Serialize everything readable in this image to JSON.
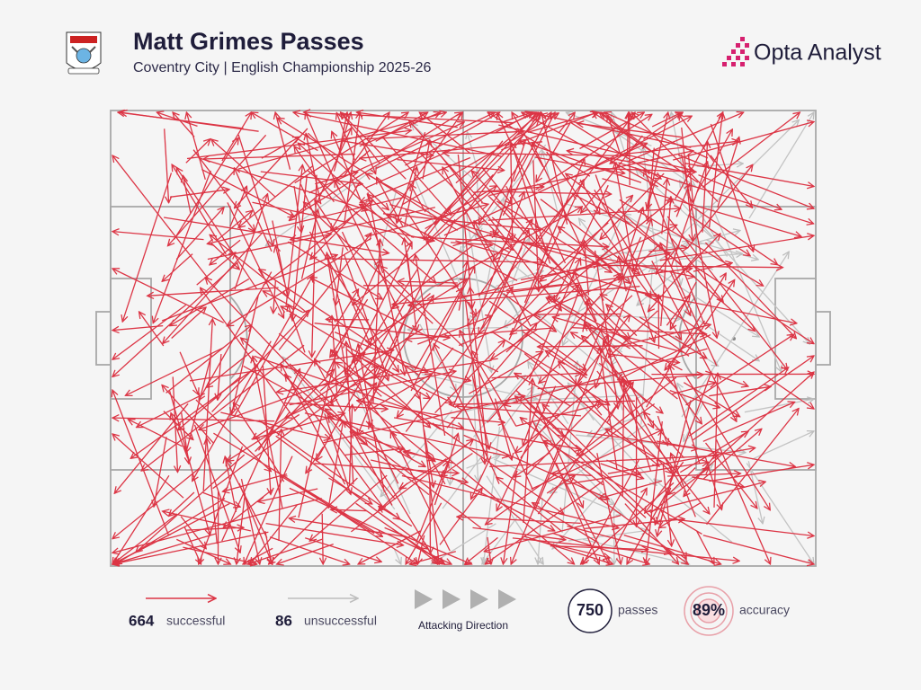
{
  "header": {
    "title": "Matt Grimes Passes",
    "subtitle": "Coventry City | English Championship 2025-26",
    "brand": "Opta Analyst"
  },
  "legend": {
    "successful": {
      "count": 664,
      "label": "successful"
    },
    "unsuccessful": {
      "count": 86,
      "label": "unsuccessful"
    },
    "direction": "Attacking Direction",
    "total": {
      "count": 750,
      "label": "passes"
    },
    "accuracy": {
      "value": 89,
      "value_label": "89%",
      "label": "accuracy"
    }
  }
}
